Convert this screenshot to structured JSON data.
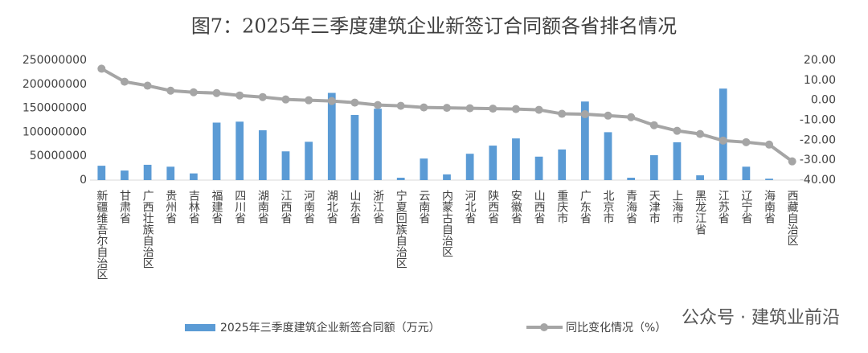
{
  "chart_data": {
    "type": "bar-line",
    "title": "图7：2025年三季度建筑企业新签订合同额各省排名情况",
    "categories": [
      "新疆维吾尔自治区",
      "甘肃省",
      "广西壮族自治区",
      "贵州省",
      "吉林省",
      "福建省",
      "四川省",
      "湖南省",
      "江西省",
      "河南省",
      "湖北省",
      "山东省",
      "浙江省",
      "宁夏回族自治区",
      "云南省",
      "内蒙古自治区",
      "河北省",
      "陕西省",
      "安徽省",
      "山西省",
      "重庆市",
      "广东省",
      "北京市",
      "青海省",
      "天津市",
      "上海市",
      "黑龙江省",
      "江苏省",
      "辽宁省",
      "海南省",
      "西藏自治区"
    ],
    "series": [
      {
        "name": "2025年三季度建筑企业新签合同额（万元）",
        "type": "bar",
        "color": "#5b9bd5",
        "values": [
          30000000,
          20000000,
          32000000,
          28000000,
          14000000,
          120000000,
          122000000,
          104000000,
          60000000,
          80000000,
          182000000,
          136000000,
          149000000,
          5000000,
          45000000,
          12000000,
          55000000,
          72000000,
          87000000,
          49000000,
          64000000,
          164000000,
          100000000,
          5000000,
          52000000,
          79000000,
          10000000,
          191000000,
          28000000,
          3000000,
          null
        ]
      },
      {
        "name": "同比变化情况（%）",
        "type": "line",
        "axis": "y2",
        "color": "#a5a5a5",
        "values": [
          15.8,
          9.3,
          7.3,
          4.8,
          4.0,
          3.6,
          2.4,
          1.6,
          0.4,
          0.0,
          -0.4,
          -1.2,
          -2.4,
          -2.8,
          -3.6,
          -3.8,
          -4.0,
          -4.2,
          -4.4,
          -4.8,
          -6.8,
          -7.0,
          -7.7,
          -8.5,
          -12.5,
          -15.3,
          -16.9,
          -20.2,
          -21.0,
          -22.2,
          -30.6
        ]
      }
    ],
    "ylim": [
      0,
      250000000
    ],
    "yticks": [
      0,
      50000000,
      100000000,
      150000000,
      200000000,
      250000000
    ],
    "y2lim": [
      -40,
      20
    ],
    "y2ticks": [
      {
        "value": -40,
        "label": "-40.00"
      },
      {
        "value": -30,
        "label": "-30.00"
      },
      {
        "value": -20,
        "label": "-20.00"
      },
      {
        "value": -10,
        "label": "-10.00"
      },
      {
        "value": 0,
        "label": "0.00"
      },
      {
        "value": 10,
        "label": "10.00"
      },
      {
        "value": 20,
        "label": "20.00"
      }
    ],
    "legend": "bottom",
    "watermark": "公众号 · 建筑业前沿"
  }
}
